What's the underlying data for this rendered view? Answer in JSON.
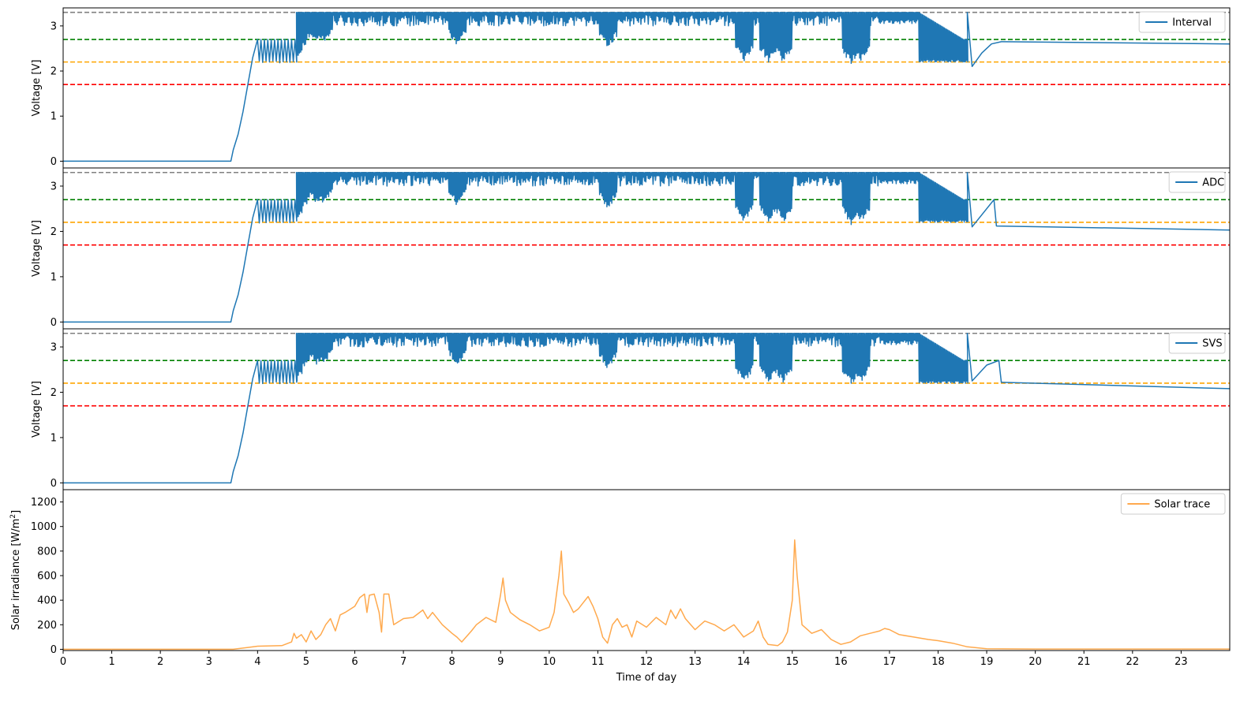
{
  "chart_data": [
    {
      "type": "line",
      "ylabel": "Voltage [V]",
      "ylim": [
        -0.15,
        3.4
      ],
      "xlim": [
        0,
        24
      ],
      "yticks": [
        0,
        1,
        2,
        3
      ],
      "thresholds": [
        {
          "value": 3.3,
          "color": "#808080"
        },
        {
          "value": 2.7,
          "color": "#008000"
        },
        {
          "value": 2.2,
          "color": "#ffa500"
        },
        {
          "value": 1.7,
          "color": "#ff0000"
        }
      ],
      "series": [
        {
          "name": "Interval",
          "color": "#1f77b4"
        }
      ],
      "legend_position": "top-right",
      "tail": {
        "start_x": 19.3,
        "start_y": 2.65,
        "end_y": 2.6
      },
      "points": [
        [
          0,
          0
        ],
        [
          3.45,
          0
        ],
        [
          3.5,
          0.25
        ],
        [
          3.6,
          0.6
        ],
        [
          3.7,
          1.1
        ],
        [
          3.8,
          1.7
        ],
        [
          3.9,
          2.3
        ],
        [
          4.0,
          2.7
        ],
        [
          4.7,
          2.7
        ],
        [
          5.0,
          3.0
        ],
        [
          5.1,
          3.3
        ],
        [
          18.6,
          3.3
        ],
        [
          18.7,
          2.1
        ],
        [
          18.9,
          2.4
        ],
        [
          19.1,
          2.6
        ],
        [
          19.3,
          2.65
        ]
      ]
    },
    {
      "type": "line",
      "ylabel": "Voltage [V]",
      "ylim": [
        -0.15,
        3.4
      ],
      "xlim": [
        0,
        24
      ],
      "yticks": [
        0,
        1,
        2,
        3
      ],
      "thresholds": [
        {
          "value": 3.3,
          "color": "#808080"
        },
        {
          "value": 2.7,
          "color": "#008000"
        },
        {
          "value": 2.2,
          "color": "#ffa500"
        },
        {
          "value": 1.7,
          "color": "#ff0000"
        }
      ],
      "series": [
        {
          "name": "ADC",
          "color": "#1f77b4"
        }
      ],
      "legend_position": "top-right",
      "tail": {
        "start_x": 19.2,
        "start_y": 2.12,
        "end_y": 2.03
      },
      "points": [
        [
          0,
          0
        ],
        [
          3.45,
          0
        ],
        [
          3.5,
          0.25
        ],
        [
          3.6,
          0.6
        ],
        [
          3.7,
          1.1
        ],
        [
          3.8,
          1.7
        ],
        [
          3.9,
          2.3
        ],
        [
          4.0,
          2.7
        ],
        [
          4.7,
          2.7
        ],
        [
          5.0,
          3.0
        ],
        [
          5.1,
          3.3
        ],
        [
          18.6,
          3.3
        ],
        [
          18.7,
          2.1
        ],
        [
          19.15,
          2.7
        ],
        [
          19.2,
          2.12
        ]
      ]
    },
    {
      "type": "line",
      "ylabel": "Voltage [V]",
      "ylim": [
        -0.15,
        3.4
      ],
      "xlim": [
        0,
        24
      ],
      "yticks": [
        0,
        1,
        2,
        3
      ],
      "thresholds": [
        {
          "value": 3.3,
          "color": "#808080"
        },
        {
          "value": 2.7,
          "color": "#008000"
        },
        {
          "value": 2.2,
          "color": "#ffa500"
        },
        {
          "value": 1.7,
          "color": "#ff0000"
        }
      ],
      "series": [
        {
          "name": "SVS",
          "color": "#1f77b4"
        }
      ],
      "legend_position": "top-right",
      "tail": {
        "start_x": 19.3,
        "start_y": 2.22,
        "end_y": 2.08
      },
      "points": [
        [
          0,
          0
        ],
        [
          3.45,
          0
        ],
        [
          3.5,
          0.25
        ],
        [
          3.6,
          0.6
        ],
        [
          3.7,
          1.1
        ],
        [
          3.8,
          1.7
        ],
        [
          3.9,
          2.3
        ],
        [
          4.0,
          2.7
        ],
        [
          4.7,
          2.7
        ],
        [
          5.0,
          3.0
        ],
        [
          5.1,
          3.3
        ],
        [
          18.6,
          3.3
        ],
        [
          18.7,
          2.25
        ],
        [
          19.0,
          2.6
        ],
        [
          19.25,
          2.7
        ],
        [
          19.3,
          2.22
        ]
      ]
    },
    {
      "type": "line",
      "ylabel": "Solar irradiance [W/m",
      "ylabel_sup": "2",
      "ylabel_end": "]",
      "xlabel": "Time of day",
      "ylim": [
        -10,
        1300
      ],
      "xlim": [
        0,
        24
      ],
      "yticks": [
        0,
        200,
        400,
        600,
        800,
        1000,
        1200
      ],
      "xticks": [
        0,
        1,
        2,
        3,
        4,
        5,
        6,
        7,
        8,
        9,
        10,
        11,
        12,
        13,
        14,
        15,
        16,
        17,
        18,
        19,
        20,
        21,
        22,
        23
      ],
      "series": [
        {
          "name": "Solar trace",
          "color": "#ffa94d"
        }
      ],
      "legend_position": "top-right",
      "points": [
        [
          0,
          0
        ],
        [
          3.5,
          0
        ],
        [
          3.8,
          15
        ],
        [
          4.0,
          25
        ],
        [
          4.5,
          30
        ],
        [
          4.7,
          60
        ],
        [
          4.75,
          130
        ],
        [
          4.8,
          90
        ],
        [
          4.9,
          120
        ],
        [
          5.0,
          60
        ],
        [
          5.1,
          150
        ],
        [
          5.2,
          80
        ],
        [
          5.3,
          120
        ],
        [
          5.4,
          200
        ],
        [
          5.5,
          250
        ],
        [
          5.6,
          150
        ],
        [
          5.7,
          280
        ],
        [
          5.8,
          300
        ],
        [
          6.0,
          350
        ],
        [
          6.1,
          420
        ],
        [
          6.2,
          450
        ],
        [
          6.25,
          300
        ],
        [
          6.3,
          440
        ],
        [
          6.4,
          450
        ],
        [
          6.5,
          300
        ],
        [
          6.55,
          140
        ],
        [
          6.6,
          450
        ],
        [
          6.7,
          450
        ],
        [
          6.8,
          200
        ],
        [
          7.0,
          250
        ],
        [
          7.2,
          260
        ],
        [
          7.4,
          320
        ],
        [
          7.5,
          250
        ],
        [
          7.6,
          300
        ],
        [
          7.8,
          200
        ],
        [
          8.0,
          130
        ],
        [
          8.1,
          100
        ],
        [
          8.2,
          60
        ],
        [
          8.4,
          150
        ],
        [
          8.5,
          200
        ],
        [
          8.7,
          260
        ],
        [
          8.9,
          220
        ],
        [
          9.0,
          450
        ],
        [
          9.05,
          580
        ],
        [
          9.1,
          400
        ],
        [
          9.2,
          300
        ],
        [
          9.4,
          240
        ],
        [
          9.6,
          200
        ],
        [
          9.8,
          150
        ],
        [
          10.0,
          180
        ],
        [
          10.1,
          300
        ],
        [
          10.2,
          600
        ],
        [
          10.25,
          800
        ],
        [
          10.3,
          450
        ],
        [
          10.4,
          380
        ],
        [
          10.5,
          300
        ],
        [
          10.6,
          330
        ],
        [
          10.7,
          380
        ],
        [
          10.8,
          430
        ],
        [
          10.9,
          350
        ],
        [
          11.0,
          250
        ],
        [
          11.1,
          100
        ],
        [
          11.2,
          50
        ],
        [
          11.3,
          200
        ],
        [
          11.4,
          250
        ],
        [
          11.5,
          180
        ],
        [
          11.6,
          200
        ],
        [
          11.7,
          100
        ],
        [
          11.8,
          230
        ],
        [
          12.0,
          180
        ],
        [
          12.2,
          260
        ],
        [
          12.4,
          200
        ],
        [
          12.5,
          320
        ],
        [
          12.6,
          250
        ],
        [
          12.7,
          330
        ],
        [
          12.8,
          250
        ],
        [
          13.0,
          160
        ],
        [
          13.2,
          230
        ],
        [
          13.4,
          200
        ],
        [
          13.6,
          150
        ],
        [
          13.8,
          200
        ],
        [
          14.0,
          100
        ],
        [
          14.2,
          150
        ],
        [
          14.3,
          230
        ],
        [
          14.4,
          100
        ],
        [
          14.5,
          40
        ],
        [
          14.7,
          30
        ],
        [
          14.8,
          60
        ],
        [
          14.9,
          140
        ],
        [
          15.0,
          400
        ],
        [
          15.05,
          890
        ],
        [
          15.1,
          600
        ],
        [
          15.2,
          200
        ],
        [
          15.4,
          130
        ],
        [
          15.6,
          160
        ],
        [
          15.8,
          80
        ],
        [
          16.0,
          40
        ],
        [
          16.2,
          60
        ],
        [
          16.4,
          110
        ],
        [
          16.6,
          130
        ],
        [
          16.8,
          150
        ],
        [
          16.9,
          170
        ],
        [
          17.0,
          160
        ],
        [
          17.2,
          120
        ],
        [
          17.5,
          100
        ],
        [
          17.8,
          80
        ],
        [
          18.0,
          70
        ],
        [
          18.3,
          50
        ],
        [
          18.6,
          20
        ],
        [
          19.0,
          5
        ],
        [
          20.0,
          2
        ],
        [
          24,
          2
        ]
      ]
    }
  ]
}
